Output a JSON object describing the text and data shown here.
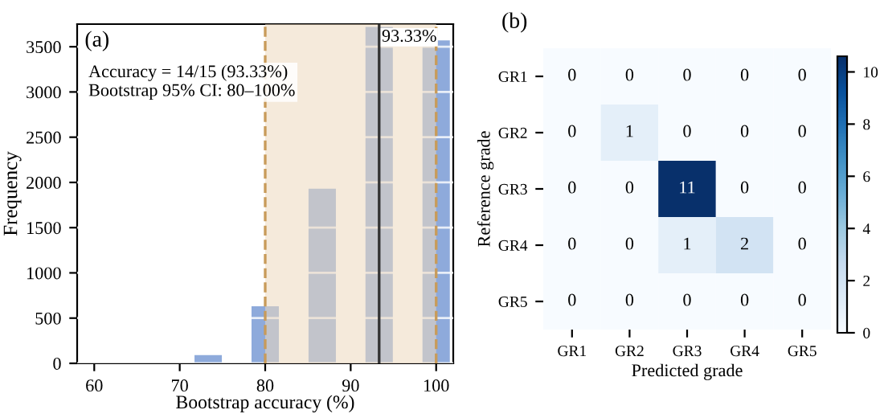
{
  "chart_data": [
    {
      "type": "bar",
      "x": [
        73.33,
        80,
        86.67,
        93.33,
        100
      ],
      "values": [
        90,
        630,
        1930,
        3720,
        3570
      ],
      "color": "#8eaadb",
      "xlabel": "Bootstrap accuracy (%)",
      "ylabel": "Frequency",
      "xlim": [
        58,
        102
      ],
      "xticks": [
        60,
        70,
        80,
        90,
        100
      ],
      "ylim": [
        0,
        3750
      ],
      "yticks": [
        0,
        500,
        1000,
        1500,
        2000,
        2500,
        3000,
        3500
      ],
      "grid": "y",
      "bands": [
        {
          "axis": "x",
          "from": 80,
          "to": 100,
          "color": "#ecd9bd"
        }
      ],
      "ref_lines": [
        {
          "axis": "x",
          "value": 80,
          "color": "#c89b5a",
          "line_style": "dashed"
        },
        {
          "axis": "x",
          "value": 100,
          "color": "#c89b5a",
          "line_style": "dashed"
        },
        {
          "axis": "x",
          "value": 93.33,
          "color": "#333333",
          "line_style": "solid",
          "label": "93.33%"
        }
      ],
      "annotations": [
        "(a)",
        "Accuracy = 14/15 (93.33%)\nBootstrap 95% CI: 80–100%"
      ]
    },
    {
      "type": "heatmap",
      "categories": [
        "GR1",
        "GR2",
        "GR3",
        "GR4",
        "GR5"
      ],
      "y_categories": [
        "GR1",
        "GR2",
        "GR3",
        "GR4",
        "GR5"
      ],
      "cells": [
        [
          0,
          0,
          0,
          0,
          0
        ],
        [
          0,
          1,
          0,
          0,
          0
        ],
        [
          0,
          0,
          11,
          0,
          0
        ],
        [
          0,
          0,
          1,
          2,
          0
        ],
        [
          0,
          0,
          0,
          0,
          0
        ]
      ],
      "xlabel": "Predicted grade",
      "ylabel": "Reference grade",
      "clim": [
        0,
        10.6
      ],
      "cticks": [
        0,
        2,
        4,
        6,
        8,
        10
      ],
      "data_labels": true,
      "annotations": [
        "(b)"
      ]
    }
  ]
}
